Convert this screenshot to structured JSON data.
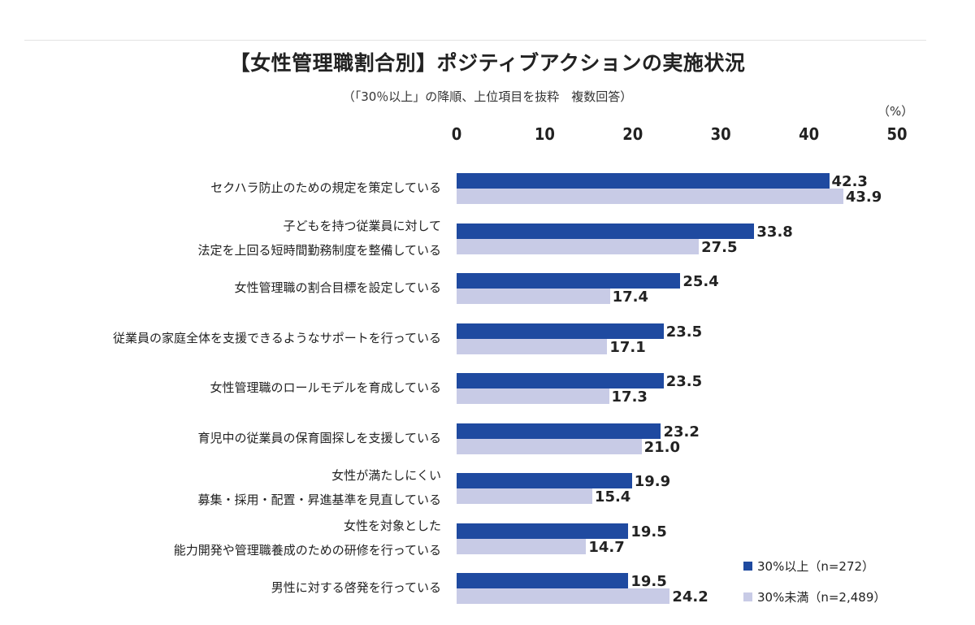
{
  "chart_data": {
    "type": "bar",
    "orientation": "horizontal",
    "title": "【女性管理職割合別】ポジティブアクションの実施状況",
    "subtitle": "（「30％以上」の降順、上位項目を抜粋　複数回答）",
    "unit_label": "（%）",
    "xlim": [
      0,
      50
    ],
    "ticks": [
      "0",
      "10",
      "20",
      "30",
      "40",
      "50"
    ],
    "grid": false,
    "legend_position": "bottom-right",
    "categories": [
      [
        "セクハラ防止のための規定を策定している"
      ],
      [
        "子どもを持つ従業員に対して",
        "法定を上回る短時間勤務制度を整備している"
      ],
      [
        "女性管理職の割合目標を設定している"
      ],
      [
        "従業員の家庭全体を支援できるようなサポートを行っている"
      ],
      [
        "女性管理職のロールモデルを育成している"
      ],
      [
        "育児中の従業員の保育園探しを支援している"
      ],
      [
        "女性が満たしにくい",
        "募集・採用・配置・昇進基準を見直している"
      ],
      [
        "女性を対象とした",
        "能力開発や管理職養成のための研修を行っている"
      ],
      [
        "男性に対する啓発を行っている"
      ]
    ],
    "series": [
      {
        "name": "30%以上（n=272）",
        "color": "#1f4aa0",
        "values": [
          42.3,
          33.8,
          25.4,
          23.5,
          23.5,
          23.2,
          19.9,
          19.5,
          19.5
        ]
      },
      {
        "name": "30%未満（n=2,489）",
        "color": "#c8cbe6",
        "values": [
          43.9,
          27.5,
          17.4,
          17.1,
          17.3,
          21.0,
          15.4,
          14.7,
          24.2
        ]
      }
    ]
  }
}
